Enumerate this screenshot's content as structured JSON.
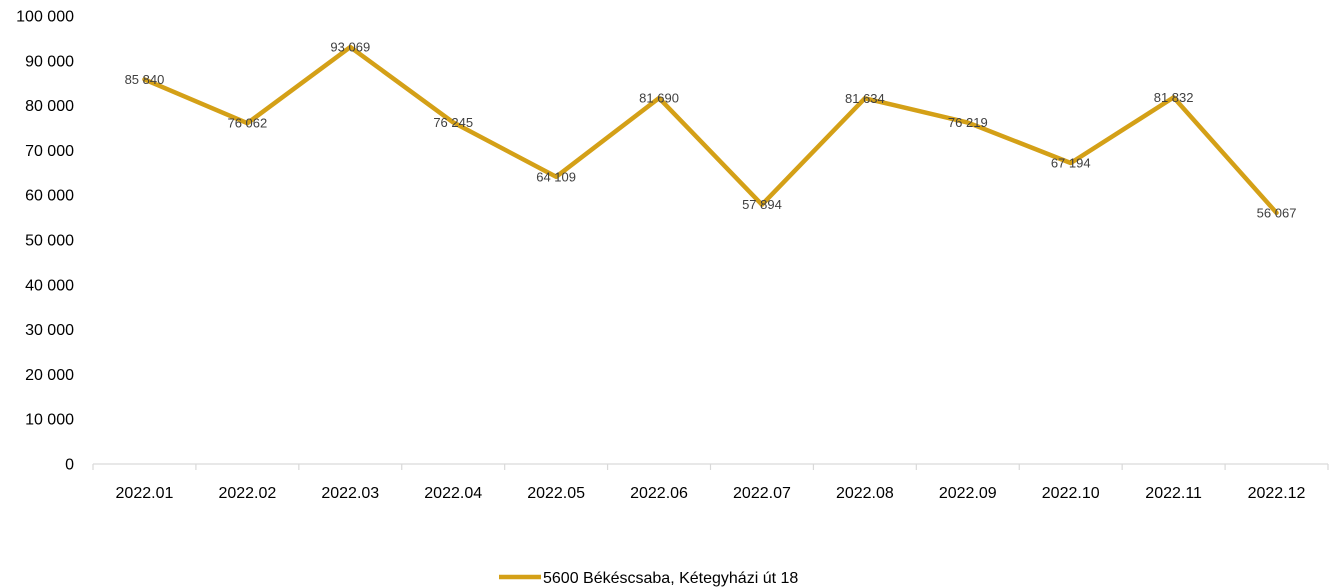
{
  "chart_data": {
    "type": "line",
    "categories": [
      "2022.01",
      "2022.02",
      "2022.03",
      "2022.04",
      "2022.05",
      "2022.06",
      "2022.07",
      "2022.08",
      "2022.09",
      "2022.10",
      "2022.11",
      "2022.12"
    ],
    "series": [
      {
        "name": "5600 Békéscsaba, Kétegyházi út 18",
        "values": [
          85840,
          76062,
          93069,
          76245,
          64109,
          81690,
          57894,
          81634,
          76219,
          67194,
          81832,
          56067
        ],
        "data_labels": [
          "85 840",
          "76 062",
          "93 069",
          "76 245",
          "64 109",
          "81 690",
          "57 894",
          "81 634",
          "76 219",
          "67 194",
          "81 832",
          "56 067"
        ],
        "color": "#D4A017"
      }
    ],
    "y_ticks": [
      0,
      10000,
      20000,
      30000,
      40000,
      50000,
      60000,
      70000,
      80000,
      90000,
      100000
    ],
    "y_tick_labels": [
      "0",
      "10 000",
      "20 000",
      "30 000",
      "40 000",
      "50 000",
      "60 000",
      "70 000",
      "80 000",
      "90 000",
      "100 000"
    ],
    "ylim": [
      0,
      100000
    ],
    "title": "",
    "xlabel": "",
    "ylabel": "",
    "grid": false,
    "legend_position": "bottom-center"
  },
  "colors": {
    "axis": "#D9D9D9"
  }
}
